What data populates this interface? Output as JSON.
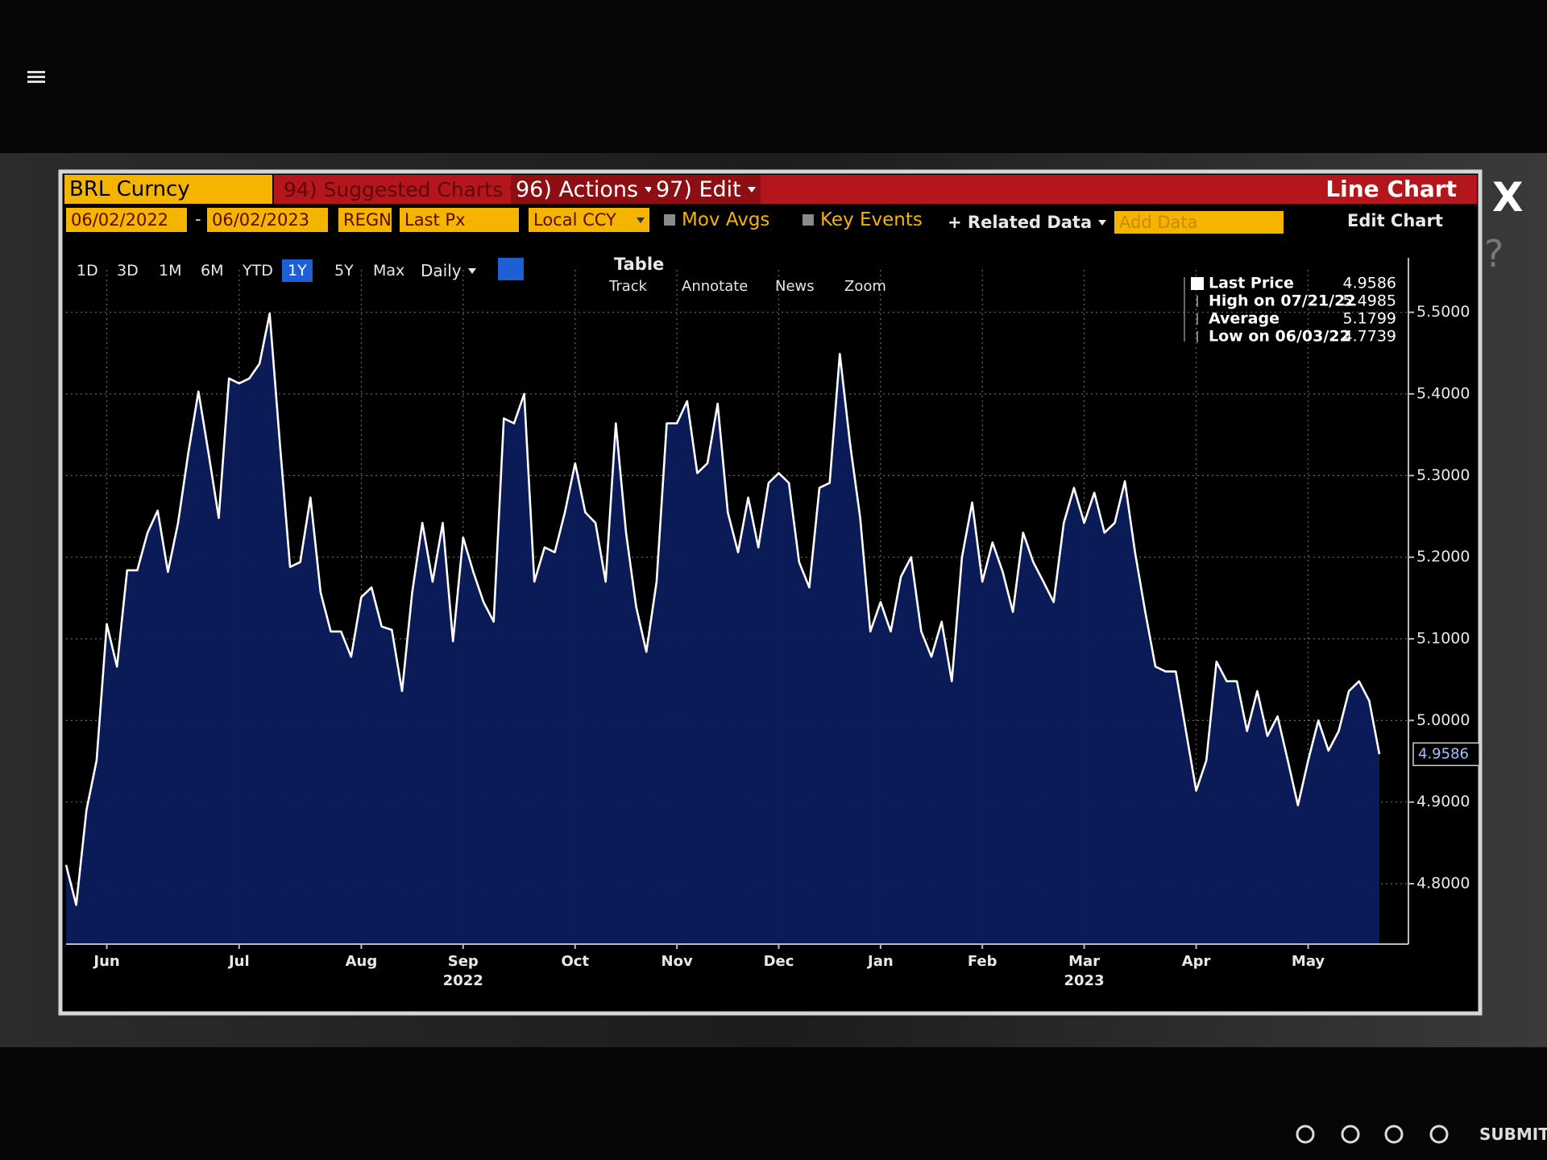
{
  "ui": {
    "security": "BRL Curncy",
    "menu": [
      "94) Suggested Charts",
      "96) Actions",
      "97) Edit"
    ],
    "chart_title": "Line Chart",
    "close": "X",
    "help": "?",
    "start_date": "06/02/2022",
    "date_sep": "-",
    "end_date": "06/02/2023",
    "fields": [
      "REGN",
      "Last Px",
      "Local CCY"
    ],
    "toggles": [
      "Mov Avgs",
      "Key Events"
    ],
    "related": "+ Related Data",
    "add_data": "Add Data",
    "edit_chart": "Edit Chart",
    "periods": [
      {
        "label": "1D",
        "active": false
      },
      {
        "label": "3D",
        "active": false
      },
      {
        "label": "1M",
        "active": false
      },
      {
        "label": "6M",
        "active": false
      },
      {
        "label": "YTD",
        "active": false
      },
      {
        "label": "1Y",
        "active": true
      },
      {
        "label": "5Y",
        "active": false
      },
      {
        "label": "Max",
        "active": false
      }
    ],
    "frequency": "Daily",
    "table": "Table",
    "tools": [
      "Track",
      "Annotate",
      "News",
      "Zoom"
    ],
    "submit": "SUBMIT"
  },
  "chart_data": {
    "type": "line",
    "categories": [
      null,
      null,
      null,
      null,
      "Jun",
      null,
      null,
      null,
      null,
      null,
      null,
      null,
      null,
      null,
      null,
      null,
      null,
      "Jul",
      null,
      null,
      null,
      null,
      null,
      null,
      null,
      null,
      null,
      null,
      null,
      "Aug",
      null,
      null,
      null,
      null,
      null,
      null,
      null,
      null,
      null,
      "Sep",
      null,
      null,
      null,
      null,
      null,
      null,
      null,
      null,
      null,
      null,
      "Oct",
      null,
      null,
      null,
      null,
      null,
      null,
      null,
      null,
      null,
      "Nov",
      null,
      null,
      null,
      null,
      null,
      null,
      null,
      null,
      null,
      "Dec",
      null,
      null,
      null,
      null,
      null,
      null,
      null,
      null,
      null,
      "Jan",
      null,
      null,
      null,
      null,
      null,
      null,
      null,
      null,
      null,
      "Feb",
      null,
      null,
      null,
      null,
      null,
      null,
      null,
      null,
      null,
      "Mar",
      null,
      null,
      null,
      null,
      null,
      null,
      null,
      null,
      null,
      null,
      "Apr",
      null,
      null,
      null,
      null,
      null,
      null,
      null,
      null,
      null,
      null,
      "May",
      null,
      null,
      null,
      null,
      null,
      null,
      null
    ],
    "series": [
      {
        "name": "Last Price",
        "color": "#ffffff",
        "fill": "#0c1c5c",
        "values": [
          4.823,
          4.774,
          4.89,
          4.951,
          5.118,
          5.066,
          5.184,
          5.184,
          5.23,
          5.257,
          5.182,
          5.242,
          5.327,
          5.403,
          5.327,
          5.248,
          5.419,
          5.413,
          5.419,
          5.437,
          5.4985,
          5.34,
          5.188,
          5.194,
          5.273,
          5.157,
          5.109,
          5.109,
          5.078,
          5.151,
          5.163,
          5.115,
          5.111,
          5.036,
          5.157,
          5.242,
          5.17,
          5.242,
          5.097,
          5.224,
          5.182,
          5.145,
          5.121,
          5.37,
          5.364,
          5.4,
          5.17,
          5.212,
          5.206,
          5.255,
          5.315,
          5.255,
          5.242,
          5.17,
          5.364,
          5.23,
          5.139,
          5.084,
          5.17,
          5.364,
          5.364,
          5.391,
          5.303,
          5.315,
          5.388,
          5.255,
          5.206,
          5.273,
          5.212,
          5.291,
          5.303,
          5.291,
          5.194,
          5.163,
          5.285,
          5.291,
          5.449,
          5.34,
          5.248,
          5.109,
          5.145,
          5.109,
          5.176,
          5.2,
          5.109,
          5.078,
          5.121,
          5.048,
          5.2,
          5.267,
          5.17,
          5.218,
          5.182,
          5.133,
          5.23,
          5.194,
          5.17,
          5.145,
          5.242,
          5.285,
          5.242,
          5.279,
          5.23,
          5.242,
          5.293,
          5.206,
          5.133,
          5.066,
          5.06,
          5.06,
          4.987,
          4.914,
          4.951,
          5.072,
          5.048,
          5.048,
          4.987,
          5.036,
          4.981,
          5.005,
          4.951,
          4.896,
          4.951,
          5.0,
          4.963,
          4.987,
          5.036,
          5.048,
          5.024,
          4.9586
        ]
      }
    ],
    "ylim": [
      4.726,
      5.552
    ],
    "yticks": [
      {
        "value": 4.8,
        "label": "4.8000"
      },
      {
        "value": 4.9,
        "label": "4.9000"
      },
      {
        "value": 5.0,
        "label": "5.0000"
      },
      {
        "value": 5.1,
        "label": "5.1000"
      },
      {
        "value": 5.2,
        "label": "5.2000"
      },
      {
        "value": 5.3,
        "label": "5.3000"
      },
      {
        "value": 5.4,
        "label": "5.4000"
      },
      {
        "value": 5.5,
        "label": "5.5000"
      }
    ],
    "grid": true,
    "year_labels": [
      {
        "label": "2022",
        "category": "Sep"
      },
      {
        "label": "2023",
        "category": "Mar"
      }
    ],
    "stats": [
      {
        "label": "High on 07/21/22",
        "value": 5.4985
      },
      {
        "label": "Average",
        "value": 5.1799
      },
      {
        "label": "Low on 06/03/22",
        "value": 4.7739
      }
    ],
    "last_value_tag": true
  }
}
